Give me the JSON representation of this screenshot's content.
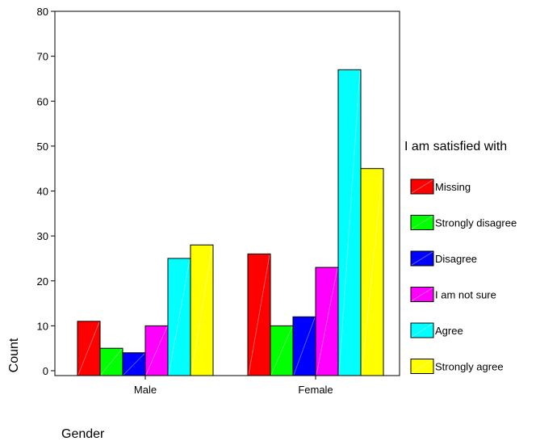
{
  "chart_data": {
    "type": "bar",
    "title": "",
    "xlabel": "Gender",
    "ylabel": "Count",
    "ylim": [
      0,
      80
    ],
    "yticks": [
      0,
      10,
      20,
      30,
      40,
      50,
      60,
      70,
      80
    ],
    "grid": false,
    "legend_position": "right",
    "legend_title": "I am satisfied with",
    "categories": [
      "Male",
      "Female"
    ],
    "series": [
      {
        "name": "Missing",
        "color": "#ff0000",
        "values": [
          11,
          26
        ]
      },
      {
        "name": "Strongly disagree",
        "color": "#00ff00",
        "values": [
          5,
          10
        ]
      },
      {
        "name": "Disagree",
        "color": "#0000ff",
        "values": [
          4,
          12
        ]
      },
      {
        "name": "I am not sure",
        "color": "#ff00ff",
        "values": [
          10,
          23
        ]
      },
      {
        "name": "Agree",
        "color": "#00ffff",
        "values": [
          25,
          67
        ]
      },
      {
        "name": "Strongly agree",
        "color": "#ffff00",
        "values": [
          28,
          45
        ]
      }
    ]
  }
}
